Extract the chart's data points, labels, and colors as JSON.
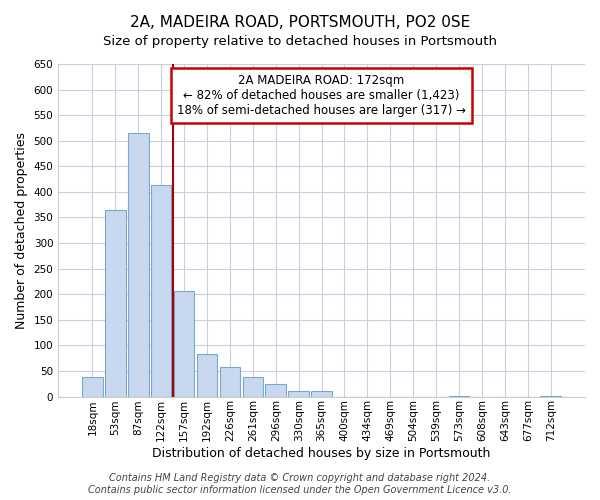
{
  "title": "2A, MADEIRA ROAD, PORTSMOUTH, PO2 0SE",
  "subtitle": "Size of property relative to detached houses in Portsmouth",
  "xlabel": "Distribution of detached houses by size in Portsmouth",
  "ylabel": "Number of detached properties",
  "bar_labels": [
    "18sqm",
    "53sqm",
    "87sqm",
    "122sqm",
    "157sqm",
    "192sqm",
    "226sqm",
    "261sqm",
    "296sqm",
    "330sqm",
    "365sqm",
    "400sqm",
    "434sqm",
    "469sqm",
    "504sqm",
    "539sqm",
    "573sqm",
    "608sqm",
    "643sqm",
    "677sqm",
    "712sqm"
  ],
  "bar_values": [
    38,
    365,
    515,
    413,
    207,
    83,
    57,
    38,
    25,
    10,
    10,
    0,
    0,
    0,
    0,
    0,
    2,
    0,
    0,
    0,
    2
  ],
  "bar_color": "#c8d8ee",
  "bar_edge_color": "#7aa8d0",
  "ylim": [
    0,
    650
  ],
  "yticks": [
    0,
    50,
    100,
    150,
    200,
    250,
    300,
    350,
    400,
    450,
    500,
    550,
    600,
    650
  ],
  "property_line_x": 3.5,
  "property_line_color": "#aa0000",
  "annotation_title": "2A MADEIRA ROAD: 172sqm",
  "annotation_line1": "← 82% of detached houses are smaller (1,423)",
  "annotation_line2": "18% of semi-detached houses are larger (317) →",
  "footer_line1": "Contains HM Land Registry data © Crown copyright and database right 2024.",
  "footer_line2": "Contains public sector information licensed under the Open Government Licence v3.0.",
  "bg_color": "#ffffff",
  "plot_bg_color": "#ffffff",
  "grid_color": "#c8d0e0",
  "title_fontsize": 11,
  "subtitle_fontsize": 9.5,
  "axis_label_fontsize": 9,
  "tick_fontsize": 7.5,
  "annotation_fontsize": 8.5,
  "footer_fontsize": 7
}
